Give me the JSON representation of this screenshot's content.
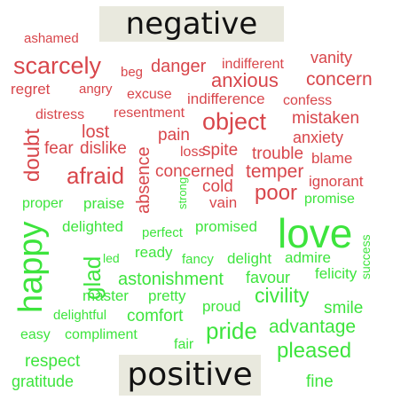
{
  "labels": {
    "top": "negative",
    "bottom": "positive"
  },
  "colors": {
    "negative": "#d8464b",
    "positive": "#3de43d",
    "label_text": "#111111",
    "label_bg": "#e9e9de"
  },
  "negative_words": [
    "ashamed",
    "scarcely",
    "beg",
    "danger",
    "indifferent",
    "vanity",
    "regret",
    "angry",
    "anxious",
    "concern",
    "excuse",
    "indifference",
    "confess",
    "distress",
    "resentment",
    "object",
    "mistaken",
    "doubt",
    "lost",
    "pain",
    "anxiety",
    "fear",
    "dislike",
    "loss",
    "spite",
    "trouble",
    "blame",
    "absence",
    "afraid",
    "concerned",
    "temper",
    "cold",
    "ignorant",
    "vain",
    "poor"
  ],
  "positive_words": [
    "proper",
    "praise",
    "strong",
    "promise",
    "happy",
    "delighted",
    "perfect",
    "promised",
    "love",
    "glad",
    "led",
    "ready",
    "fancy",
    "delight",
    "admire",
    "felicity",
    "success",
    "astonishment",
    "favour",
    "master",
    "pretty",
    "civility",
    "proud",
    "smile",
    "delightful",
    "comfort",
    "easy",
    "compliment",
    "pride",
    "advantage",
    "fair",
    "pleased",
    "respect",
    "gratitude",
    "fine"
  ]
}
